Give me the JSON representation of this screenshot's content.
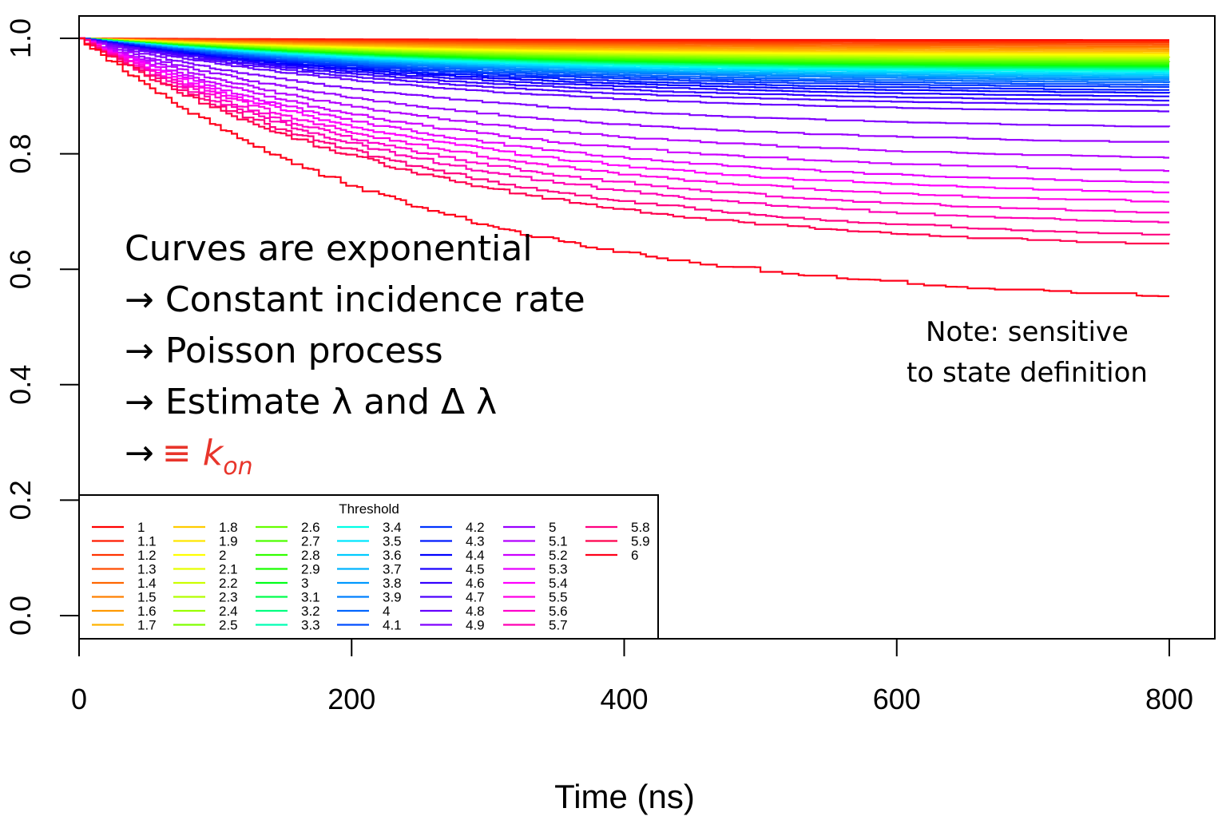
{
  "chart_data": {
    "type": "line",
    "xlabel": "Time (ns)",
    "ylabel": "",
    "xlim": [
      0,
      800
    ],
    "ylim": [
      0,
      1
    ],
    "x_ticks": [
      "0",
      "200",
      "400",
      "600",
      "800"
    ],
    "y_ticks": [
      "0.0",
      "0.2",
      "0.4",
      "0.6",
      "0.8",
      "1.0"
    ],
    "legend": {
      "title": "Threshold",
      "placement": "bottom-left"
    },
    "series": [
      {
        "name": "1",
        "color": "#ff0000",
        "final": 0.997
      },
      {
        "name": "1.1",
        "color": "#ff1a00",
        "final": 0.995
      },
      {
        "name": "1.2",
        "color": "#ff3300",
        "final": 0.993
      },
      {
        "name": "1.3",
        "color": "#ff4d00",
        "final": 0.99
      },
      {
        "name": "1.4",
        "color": "#ff6600",
        "final": 0.987
      },
      {
        "name": "1.5",
        "color": "#ff8000",
        "final": 0.984
      },
      {
        "name": "1.6",
        "color": "#ff9900",
        "final": 0.981
      },
      {
        "name": "1.7",
        "color": "#ffb300",
        "final": 0.978
      },
      {
        "name": "1.8",
        "color": "#ffcc00",
        "final": 0.975
      },
      {
        "name": "1.9",
        "color": "#ffe600",
        "final": 0.973
      },
      {
        "name": "2",
        "color": "#ffff00",
        "final": 0.971
      },
      {
        "name": "2.1",
        "color": "#e6ff00",
        "final": 0.969
      },
      {
        "name": "2.2",
        "color": "#ccff00",
        "final": 0.967
      },
      {
        "name": "2.3",
        "color": "#b3ff00",
        "final": 0.965
      },
      {
        "name": "2.4",
        "color": "#99ff00",
        "final": 0.963
      },
      {
        "name": "2.5",
        "color": "#80ff00",
        "final": 0.961
      },
      {
        "name": "2.6",
        "color": "#66ff00",
        "final": 0.959
      },
      {
        "name": "2.7",
        "color": "#4dff00",
        "final": 0.957
      },
      {
        "name": "2.8",
        "color": "#33ff00",
        "final": 0.955
      },
      {
        "name": "2.9",
        "color": "#1aff00",
        "final": 0.953
      },
      {
        "name": "3",
        "color": "#00ff1a",
        "final": 0.951
      },
      {
        "name": "3.1",
        "color": "#00ff4d",
        "final": 0.949
      },
      {
        "name": "3.2",
        "color": "#00ff80",
        "final": 0.947
      },
      {
        "name": "3.3",
        "color": "#00ffb3",
        "final": 0.945
      },
      {
        "name": "3.4",
        "color": "#00ffe6",
        "final": 0.943
      },
      {
        "name": "3.5",
        "color": "#00e6ff",
        "final": 0.94
      },
      {
        "name": "3.6",
        "color": "#00ccff",
        "final": 0.937
      },
      {
        "name": "3.7",
        "color": "#00b3ff",
        "final": 0.934
      },
      {
        "name": "3.8",
        "color": "#0099ff",
        "final": 0.931
      },
      {
        "name": "3.9",
        "color": "#0080ff",
        "final": 0.928
      },
      {
        "name": "4",
        "color": "#0066ff",
        "final": 0.924
      },
      {
        "name": "4.1",
        "color": "#004dff",
        "final": 0.92
      },
      {
        "name": "4.2",
        "color": "#0033ff",
        "final": 0.916
      },
      {
        "name": "4.3",
        "color": "#001aff",
        "final": 0.911
      },
      {
        "name": "4.4",
        "color": "#0000ff",
        "final": 0.906
      },
      {
        "name": "4.5",
        "color": "#1a00ff",
        "final": 0.9
      },
      {
        "name": "4.6",
        "color": "#3300ff",
        "final": 0.893
      },
      {
        "name": "4.7",
        "color": "#4d00ff",
        "final": 0.885
      },
      {
        "name": "4.8",
        "color": "#6600ff",
        "final": 0.874
      },
      {
        "name": "4.9",
        "color": "#8000ff",
        "final": 0.848
      },
      {
        "name": "5",
        "color": "#9900ff",
        "final": 0.821
      },
      {
        "name": "5.1",
        "color": "#b300ff",
        "final": 0.795
      },
      {
        "name": "5.2",
        "color": "#cc00ff",
        "final": 0.772
      },
      {
        "name": "5.3",
        "color": "#e600ff",
        "final": 0.752
      },
      {
        "name": "5.4",
        "color": "#ff00ff",
        "final": 0.735
      },
      {
        "name": "5.5",
        "color": "#ff00e6",
        "final": 0.718
      },
      {
        "name": "5.6",
        "color": "#ff00cc",
        "final": 0.7
      },
      {
        "name": "5.7",
        "color": "#ff00b3",
        "final": 0.683
      },
      {
        "name": "5.8",
        "color": "#ff0080",
        "final": 0.662
      },
      {
        "name": "5.9",
        "color": "#ff004d",
        "final": 0.645
      },
      {
        "name": "6",
        "color": "#ff001a",
        "final": 0.556
      }
    ],
    "annotations": {
      "lines": [
        "Curves are exponential",
        "→ Constant incidence rate",
        "→ Poisson process",
        "→ Estimate λ and  Δ λ"
      ],
      "kon_arrow": "→",
      "kon_equiv": "≡ ",
      "kon_k": "k",
      "kon_sub": "on",
      "kon_color": "#e8352b",
      "note_line1": "Note: sensitive",
      "note_line2": "to state definition"
    }
  }
}
